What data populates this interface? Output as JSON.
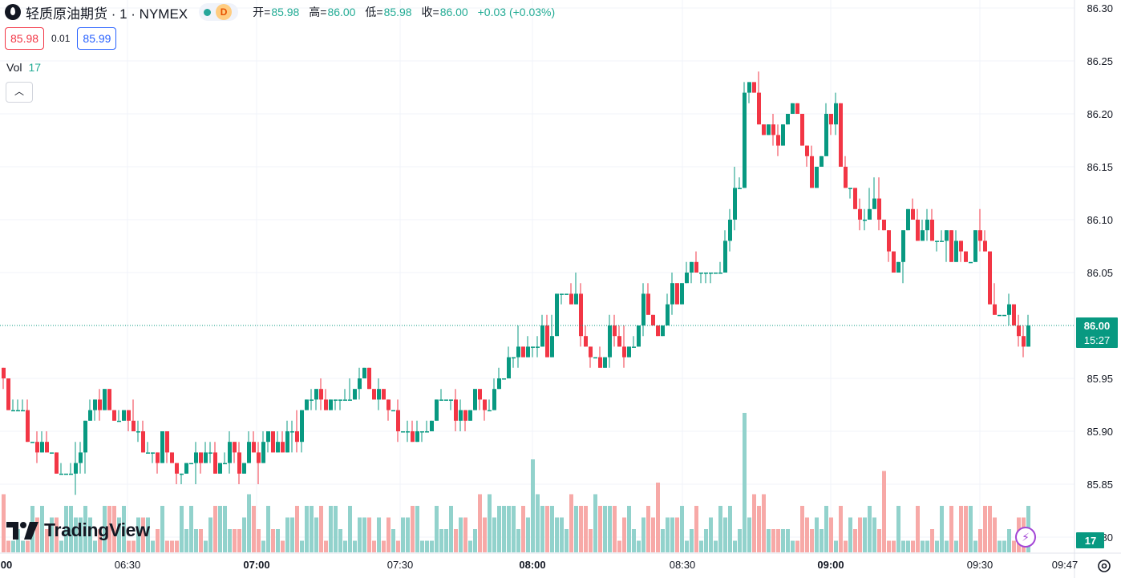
{
  "header": {
    "symbol": "轻质原油期货 · 1 · NYMEX",
    "status_badge": "D",
    "open_label": "开=",
    "open": "85.98",
    "high_label": "高=",
    "high": "86.00",
    "low_label": "低=",
    "low": "85.98",
    "close_label": "收=",
    "close": "86.00",
    "change": "+0.03 (+0.03%)"
  },
  "quote": {
    "sell": "85.98",
    "spread": "0.01",
    "buy": "85.99"
  },
  "volume_legend": {
    "label": "Vol",
    "value": "17"
  },
  "watermark": "TradingView",
  "price_badge": {
    "price": "86.00",
    "countdown": "15:27"
  },
  "volume_badge": "17",
  "colors": {
    "up": "#089981",
    "down": "#f23645",
    "vol_up": "#92d2cc",
    "vol_down": "#f7a9a7",
    "grid": "#f0f3fa"
  },
  "chart_data": {
    "type": "candlestick",
    "interval": "1 minute",
    "y_ticks": [
      "86.30",
      "86.25",
      "86.20",
      "86.15",
      "86.10",
      "86.05",
      "85.95",
      "85.90",
      "85.85",
      "85.80"
    ],
    "x_ticks": [
      {
        "label": "00",
        "bold": true
      },
      {
        "label": "06:30",
        "bold": false
      },
      {
        "label": "07:00",
        "bold": true
      },
      {
        "label": "07:30",
        "bold": false
      },
      {
        "label": "08:00",
        "bold": true
      },
      {
        "label": "08:30",
        "bold": false
      },
      {
        "label": "09:00",
        "bold": true
      },
      {
        "label": "09:30",
        "bold": false
      },
      {
        "label": "09:47",
        "bold": false
      }
    ],
    "ylim": [
      85.79,
      86.31
    ],
    "last_price": 86.0,
    "grid": true,
    "close_path": [
      [
        0,
        85.96
      ],
      [
        8,
        85.92
      ],
      [
        16,
        85.91
      ],
      [
        24,
        85.93
      ],
      [
        32,
        85.89
      ],
      [
        40,
        85.88
      ],
      [
        48,
        85.89
      ],
      [
        56,
        85.88
      ],
      [
        64,
        85.88
      ],
      [
        72,
        85.86
      ],
      [
        80,
        85.86
      ],
      [
        88,
        85.87
      ],
      [
        96,
        85.87
      ],
      [
        104,
        85.92
      ],
      [
        112,
        85.93
      ],
      [
        120,
        85.93
      ],
      [
        128,
        85.94
      ],
      [
        136,
        85.91
      ],
      [
        144,
        85.91
      ],
      [
        152,
        85.92
      ],
      [
        160,
        85.91
      ],
      [
        168,
        85.89
      ],
      [
        176,
        85.88
      ],
      [
        184,
        85.88
      ],
      [
        192,
        85.88
      ],
      [
        200,
        85.89
      ],
      [
        208,
        85.87
      ],
      [
        216,
        85.86
      ],
      [
        224,
        85.86
      ],
      [
        232,
        85.87
      ],
      [
        240,
        85.87
      ],
      [
        248,
        85.87
      ],
      [
        256,
        85.88
      ],
      [
        264,
        85.87
      ],
      [
        272,
        85.86
      ],
      [
        280,
        85.87
      ],
      [
        288,
        85.88
      ],
      [
        296,
        85.87
      ],
      [
        304,
        85.87
      ],
      [
        312,
        85.88
      ],
      [
        320,
        85.87
      ],
      [
        328,
        85.9
      ],
      [
        336,
        85.89
      ],
      [
        344,
        85.89
      ],
      [
        352,
        85.89
      ],
      [
        360,
        85.9
      ],
      [
        368,
        85.89
      ],
      [
        376,
        85.91
      ],
      [
        384,
        85.92
      ],
      [
        392,
        85.94
      ],
      [
        400,
        85.93
      ],
      [
        408,
        85.93
      ],
      [
        416,
        85.93
      ],
      [
        424,
        85.94
      ],
      [
        432,
        85.94
      ],
      [
        440,
        85.94
      ],
      [
        448,
        85.95
      ],
      [
        456,
        85.94
      ],
      [
        464,
        85.94
      ],
      [
        472,
        85.93
      ],
      [
        480,
        85.93
      ],
      [
        488,
        85.92
      ],
      [
        496,
        85.9
      ],
      [
        504,
        85.89
      ],
      [
        512,
        85.89
      ],
      [
        520,
        85.9
      ],
      [
        528,
        85.9
      ],
      [
        536,
        85.91
      ],
      [
        544,
        85.93
      ],
      [
        552,
        85.93
      ],
      [
        560,
        85.93
      ],
      [
        568,
        85.92
      ],
      [
        576,
        85.92
      ],
      [
        584,
        85.93
      ],
      [
        592,
        85.93
      ],
      [
        600,
        85.92
      ],
      [
        608,
        85.93
      ],
      [
        616,
        85.94
      ],
      [
        624,
        85.96
      ],
      [
        632,
        85.97
      ],
      [
        640,
        85.97
      ],
      [
        648,
        85.97
      ],
      [
        656,
        85.98
      ],
      [
        664,
        85.98
      ],
      [
        672,
        85.99
      ],
      [
        680,
        85.97
      ],
      [
        688,
        86.0
      ],
      [
        696,
        86.03
      ],
      [
        704,
        86.04
      ],
      [
        712,
        86.03
      ],
      [
        720,
        86.0
      ],
      [
        728,
        85.98
      ],
      [
        736,
        85.97
      ],
      [
        744,
        85.96
      ],
      [
        752,
        85.97
      ],
      [
        760,
        85.99
      ],
      [
        768,
        85.99
      ],
      [
        776,
        85.98
      ],
      [
        784,
        85.96
      ],
      [
        792,
        85.99
      ],
      [
        800,
        86.02
      ],
      [
        808,
        86.01
      ],
      [
        816,
        85.99
      ],
      [
        824,
        86.0
      ],
      [
        832,
        86.02
      ],
      [
        840,
        86.03
      ],
      [
        848,
        86.04
      ],
      [
        856,
        86.05
      ],
      [
        864,
        86.05
      ],
      [
        872,
        86.06
      ],
      [
        880,
        86.05
      ],
      [
        888,
        86.04
      ],
      [
        896,
        86.06
      ],
      [
        904,
        86.09
      ],
      [
        912,
        86.11
      ],
      [
        920,
        86.14
      ],
      [
        928,
        86.24
      ],
      [
        936,
        86.22
      ],
      [
        944,
        86.2
      ],
      [
        952,
        86.19
      ],
      [
        960,
        86.18
      ],
      [
        968,
        86.17
      ],
      [
        976,
        86.19
      ],
      [
        984,
        86.21
      ],
      [
        992,
        86.19
      ],
      [
        1000,
        86.18
      ],
      [
        1008,
        86.14
      ],
      [
        1016,
        86.15
      ],
      [
        1024,
        86.18
      ],
      [
        1032,
        86.19
      ],
      [
        1040,
        86.2
      ],
      [
        1048,
        86.14
      ],
      [
        1056,
        86.12
      ],
      [
        1064,
        86.11
      ],
      [
        1072,
        86.1
      ],
      [
        1080,
        86.11
      ],
      [
        1088,
        86.12
      ],
      [
        1096,
        86.1
      ],
      [
        1104,
        86.07
      ],
      [
        1112,
        86.05
      ],
      [
        1120,
        86.06
      ],
      [
        1128,
        86.11
      ],
      [
        1136,
        86.1
      ],
      [
        1144,
        86.07
      ],
      [
        1152,
        86.1
      ],
      [
        1160,
        86.08
      ],
      [
        1168,
        86.06
      ],
      [
        1176,
        86.1
      ],
      [
        1184,
        86.07
      ],
      [
        1192,
        86.08
      ],
      [
        1200,
        86.05
      ],
      [
        1208,
        86.07
      ],
      [
        1216,
        86.1
      ],
      [
        1224,
        86.07
      ],
      [
        1232,
        86.02
      ],
      [
        1240,
        86.01
      ],
      [
        1248,
        86.01
      ],
      [
        1256,
        86.02
      ],
      [
        1264,
        86.0
      ],
      [
        1272,
        85.97
      ],
      [
        1280,
        86.0
      ]
    ],
    "volume_peaks": [
      {
        "x": 664,
        "volume": 8
      },
      {
        "x": 928,
        "volume": 12
      },
      {
        "x": 1100,
        "volume": 7
      },
      {
        "x": 936,
        "volume": 5
      },
      {
        "x": 1044,
        "volume": 4
      },
      {
        "x": 1272,
        "volume": 3
      }
    ]
  }
}
